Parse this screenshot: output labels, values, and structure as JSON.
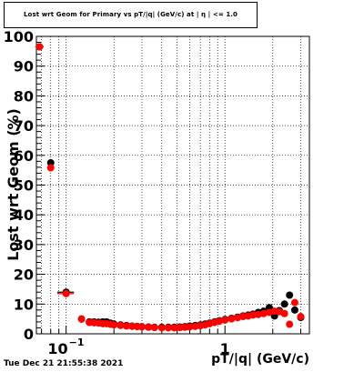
{
  "timestamp": "Tue Dec 21 21:55:38 2021",
  "chart_data": {
    "type": "scatter",
    "title": "Lost wrt Geom for Primary vs pT/|q| (GeV/c) at | η | <= 1.0",
    "xlabel": "pT/|q| (GeV/c)",
    "ylabel": "Lost wrt Geom (%)",
    "xscale": "log",
    "xlim": [
      0.065,
      3.4
    ],
    "ylim": [
      0,
      100
    ],
    "grid": true,
    "x_tick_labels": [
      {
        "value": 0.1,
        "base": "10",
        "exp": "−1"
      },
      {
        "value": 1,
        "base": "1",
        "exp": ""
      }
    ],
    "y_ticks": [
      0,
      10,
      20,
      30,
      40,
      50,
      60,
      70,
      80,
      90,
      100
    ],
    "y_tick_labels": [
      "0",
      "10",
      "20",
      "30",
      "40",
      "50",
      "60",
      "70",
      "80",
      "90",
      "100"
    ],
    "series": [
      {
        "color": "#000000",
        "points": [
          {
            "x": 0.068,
            "y": 96.5,
            "xerr": 0.004
          },
          {
            "x": 0.08,
            "y": 57.5,
            "xerr": 0.004
          },
          {
            "x": 0.1,
            "y": 14.0,
            "xerr": 0.012
          },
          {
            "x": 0.125,
            "y": 5.0,
            "xerr": 0.006
          },
          {
            "x": 0.14,
            "y": 4.0
          },
          {
            "x": 0.15,
            "y": 4.0
          },
          {
            "x": 0.16,
            "y": 3.9
          },
          {
            "x": 0.17,
            "y": 4.0
          },
          {
            "x": 0.18,
            "y": 4.0
          },
          {
            "x": 0.19,
            "y": 3.6
          },
          {
            "x": 0.2,
            "y": 3.3
          },
          {
            "x": 0.22,
            "y": 3.0
          },
          {
            "x": 0.24,
            "y": 2.8
          },
          {
            "x": 0.26,
            "y": 2.6
          },
          {
            "x": 0.28,
            "y": 2.5
          },
          {
            "x": 0.3,
            "y": 2.4
          },
          {
            "x": 0.33,
            "y": 2.3
          },
          {
            "x": 0.36,
            "y": 2.2
          },
          {
            "x": 0.4,
            "y": 2.2
          },
          {
            "x": 0.44,
            "y": 2.2
          },
          {
            "x": 0.48,
            "y": 2.2
          },
          {
            "x": 0.52,
            "y": 2.3
          },
          {
            "x": 0.56,
            "y": 2.4
          },
          {
            "x": 0.6,
            "y": 2.6
          },
          {
            "x": 0.65,
            "y": 2.8
          },
          {
            "x": 0.7,
            "y": 3.0
          },
          {
            "x": 0.75,
            "y": 3.3
          },
          {
            "x": 0.8,
            "y": 3.6
          },
          {
            "x": 0.86,
            "y": 4.0
          },
          {
            "x": 0.92,
            "y": 4.4
          },
          {
            "x": 1.0,
            "y": 4.8
          },
          {
            "x": 1.1,
            "y": 5.2
          },
          {
            "x": 1.2,
            "y": 5.6
          },
          {
            "x": 1.3,
            "y": 6.0
          },
          {
            "x": 1.4,
            "y": 6.3
          },
          {
            "x": 1.5,
            "y": 6.6
          },
          {
            "x": 1.62,
            "y": 7.2
          },
          {
            "x": 1.75,
            "y": 7.6
          },
          {
            "x": 1.9,
            "y": 8.8
          },
          {
            "x": 2.05,
            "y": 6.0
          },
          {
            "x": 2.2,
            "y": 7.8
          },
          {
            "x": 2.37,
            "y": 10.0
          },
          {
            "x": 2.55,
            "y": 13.0
          },
          {
            "x": 2.75,
            "y": 8.0
          },
          {
            "x": 3.0,
            "y": 5.5
          }
        ]
      },
      {
        "color": "#ff0000",
        "points": [
          {
            "x": 0.068,
            "y": 96.5,
            "xerr": 0.004
          },
          {
            "x": 0.08,
            "y": 55.8,
            "xerr": 0.004
          },
          {
            "x": 0.1,
            "y": 13.5,
            "xerr": 0.012
          },
          {
            "x": 0.125,
            "y": 4.9,
            "xerr": 0.006
          },
          {
            "x": 0.14,
            "y": 3.8
          },
          {
            "x": 0.15,
            "y": 3.7
          },
          {
            "x": 0.16,
            "y": 3.6
          },
          {
            "x": 0.17,
            "y": 3.4
          },
          {
            "x": 0.18,
            "y": 3.4
          },
          {
            "x": 0.19,
            "y": 3.2
          },
          {
            "x": 0.2,
            "y": 3.0
          },
          {
            "x": 0.22,
            "y": 2.8
          },
          {
            "x": 0.24,
            "y": 2.6
          },
          {
            "x": 0.26,
            "y": 2.5
          },
          {
            "x": 0.28,
            "y": 2.4
          },
          {
            "x": 0.3,
            "y": 2.3
          },
          {
            "x": 0.33,
            "y": 2.2
          },
          {
            "x": 0.36,
            "y": 2.1
          },
          {
            "x": 0.4,
            "y": 2.0
          },
          {
            "x": 0.44,
            "y": 2.0
          },
          {
            "x": 0.48,
            "y": 2.0
          },
          {
            "x": 0.52,
            "y": 2.1
          },
          {
            "x": 0.56,
            "y": 2.2
          },
          {
            "x": 0.6,
            "y": 2.3
          },
          {
            "x": 0.65,
            "y": 2.5
          },
          {
            "x": 0.7,
            "y": 2.7
          },
          {
            "x": 0.75,
            "y": 3.0
          },
          {
            "x": 0.8,
            "y": 3.4
          },
          {
            "x": 0.86,
            "y": 3.8
          },
          {
            "x": 0.92,
            "y": 4.2
          },
          {
            "x": 1.0,
            "y": 4.6
          },
          {
            "x": 1.1,
            "y": 5.0
          },
          {
            "x": 1.2,
            "y": 5.4
          },
          {
            "x": 1.3,
            "y": 5.8
          },
          {
            "x": 1.4,
            "y": 6.0
          },
          {
            "x": 1.5,
            "y": 6.3
          },
          {
            "x": 1.62,
            "y": 6.5
          },
          {
            "x": 1.75,
            "y": 6.8
          },
          {
            "x": 1.9,
            "y": 7.2
          },
          {
            "x": 2.05,
            "y": 7.6
          },
          {
            "x": 2.2,
            "y": 7.4
          },
          {
            "x": 2.37,
            "y": 6.8
          },
          {
            "x": 2.55,
            "y": 3.2
          },
          {
            "x": 2.75,
            "y": 10.5
          },
          {
            "x": 3.0,
            "y": 5.8
          }
        ]
      }
    ]
  }
}
